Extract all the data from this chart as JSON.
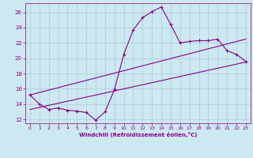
{
  "xlabel": "Windchill (Refroidissement éolien,°C)",
  "background_color": "#cce8f0",
  "grid_color": "#aaccd8",
  "line_color": "#880088",
  "spine_color": "#880088",
  "xlim": [
    -0.5,
    23.5
  ],
  "ylim": [
    11.5,
    27.2
  ],
  "xticks": [
    0,
    1,
    2,
    3,
    4,
    5,
    6,
    7,
    8,
    9,
    10,
    11,
    12,
    13,
    14,
    15,
    16,
    17,
    18,
    19,
    20,
    21,
    22,
    23
  ],
  "yticks": [
    12,
    14,
    16,
    18,
    20,
    22,
    24,
    26
  ],
  "line1_x": [
    0,
    1,
    2,
    3,
    4,
    5,
    6,
    7,
    8,
    9,
    10,
    11,
    12,
    13,
    14,
    15,
    16,
    17,
    18,
    19,
    20,
    21,
    22,
    23
  ],
  "line1_y": [
    15.2,
    14.0,
    13.3,
    13.5,
    13.2,
    13.1,
    12.9,
    11.9,
    13.0,
    15.9,
    20.5,
    23.7,
    25.3,
    26.1,
    26.7,
    24.4,
    22.0,
    22.2,
    22.3,
    22.3,
    22.5,
    21.0,
    20.5,
    19.6
  ],
  "line2_x": [
    0,
    23
  ],
  "line2_y": [
    15.2,
    22.5
  ],
  "line3_x": [
    0,
    23
  ],
  "line3_y": [
    13.3,
    19.5
  ]
}
